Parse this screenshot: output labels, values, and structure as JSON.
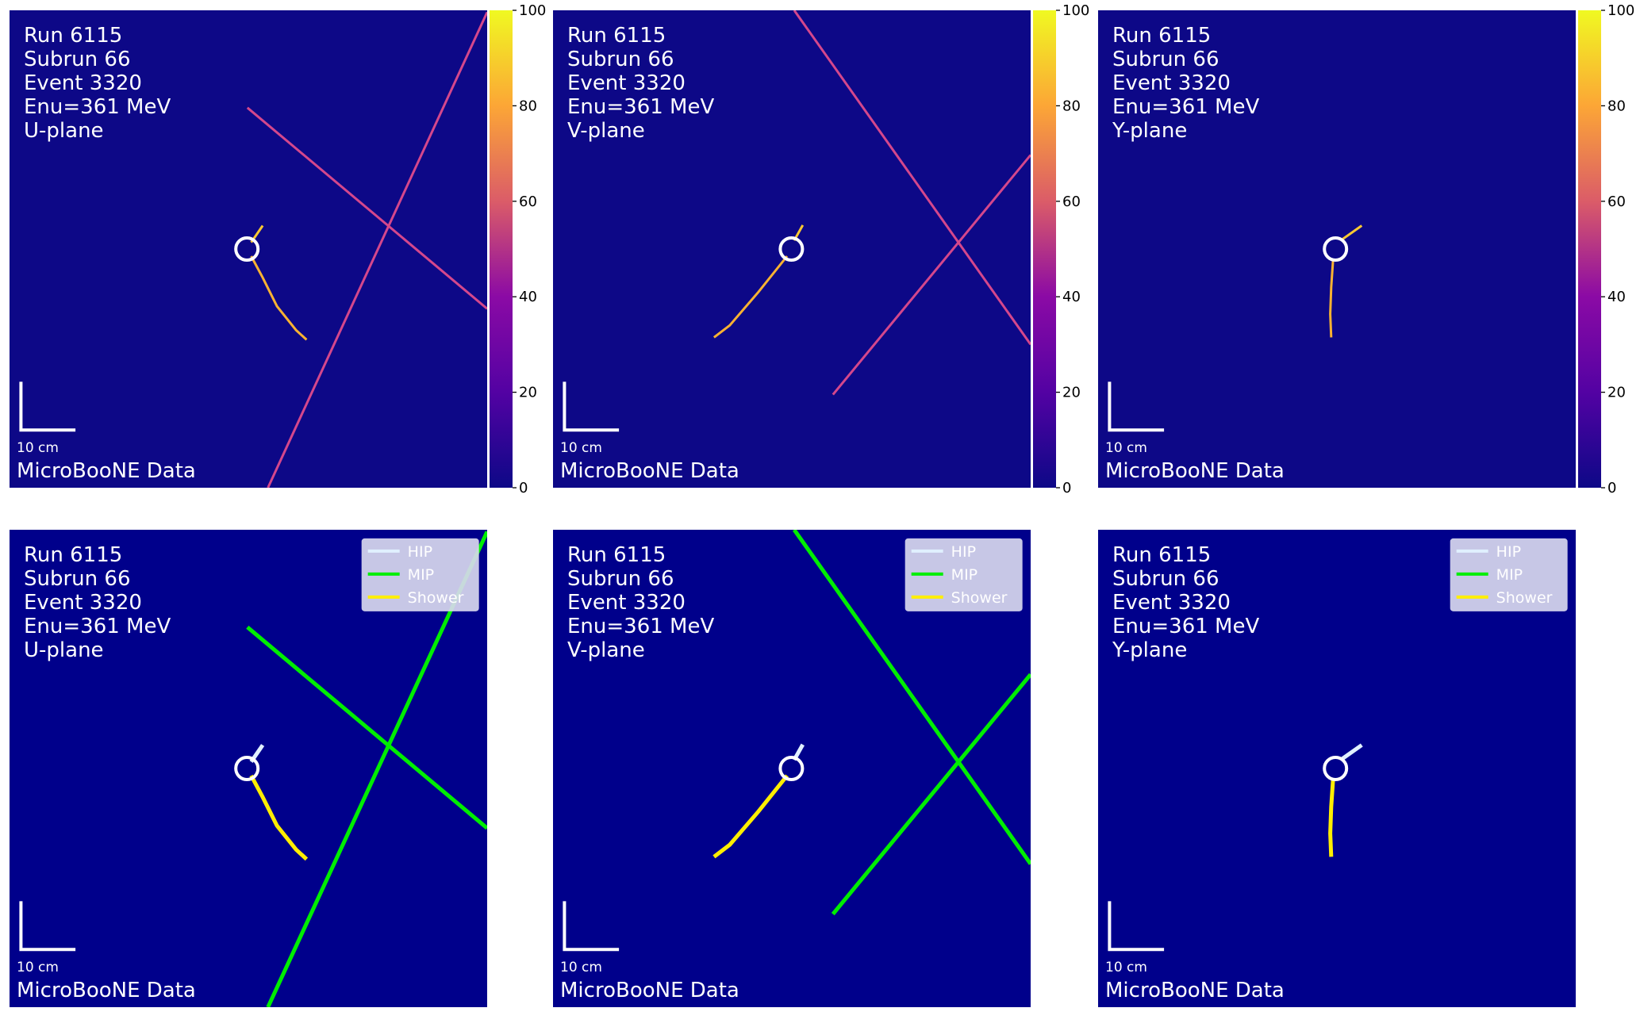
{
  "panels": [
    {
      "run": "Run 6115",
      "subrun": "Subrun 66",
      "event": "Event 3320",
      "energy": "Enu=361 MeV",
      "plane": "U-plane",
      "scale_bar": "10 cm",
      "label": "MicroBooNE Data"
    },
    {
      "run": "Run 6115",
      "subrun": "Subrun 66",
      "event": "Event 3320",
      "energy": "Enu=361 MeV",
      "plane": "V-plane",
      "scale_bar": "10 cm",
      "label": "MicroBooNE Data"
    },
    {
      "run": "Run 6115",
      "subrun": "Subrun 66",
      "event": "Event 3320",
      "energy": "Enu=361 MeV",
      "plane": "Y-plane",
      "scale_bar": "10 cm",
      "label": "MicroBooNE Data"
    },
    {
      "run": "Run 6115",
      "subrun": "Subrun 66",
      "event": "Event 3320",
      "energy": "Enu=361 MeV",
      "plane": "U-plane",
      "scale_bar": "10 cm",
      "label": "MicroBooNE Data"
    },
    {
      "run": "Run 6115",
      "subrun": "Subrun 66",
      "event": "Event 3320",
      "energy": "Enu=361 MeV",
      "plane": "V-plane",
      "scale_bar": "10 cm",
      "label": "MicroBooNE Data"
    },
    {
      "run": "Run 6115",
      "subrun": "Subrun 66",
      "event": "Event 3320",
      "energy": "Enu=361 MeV",
      "plane": "Y-plane",
      "scale_bar": "10 cm",
      "label": "MicroBooNE Data"
    }
  ],
  "colorbar": {
    "ticks": [
      0,
      20,
      40,
      60,
      80,
      100
    ]
  },
  "legend": {
    "items": [
      {
        "name": "HIP",
        "color": "#e0f0ff"
      },
      {
        "name": "MIP",
        "color": "#00ee00"
      },
      {
        "name": "Shower",
        "color": "#ffee00"
      }
    ]
  }
}
